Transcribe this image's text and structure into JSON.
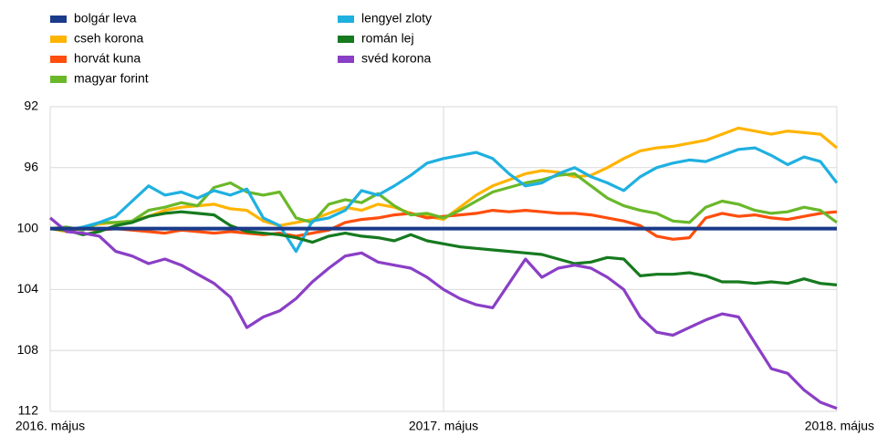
{
  "chart_data": {
    "type": "line",
    "categories": [
      "2016. május",
      null,
      null,
      null,
      null,
      null,
      null,
      null,
      null,
      null,
      null,
      null,
      null,
      null,
      null,
      null,
      null,
      null,
      null,
      null,
      null,
      null,
      null,
      null,
      "2017. május",
      null,
      null,
      null,
      null,
      null,
      null,
      null,
      null,
      null,
      null,
      null,
      null,
      null,
      null,
      null,
      null,
      null,
      null,
      null,
      null,
      null,
      null,
      null,
      "2018. május"
    ],
    "ylim": [
      92,
      112
    ],
    "yticks": [
      92,
      96,
      100,
      104,
      108,
      112
    ],
    "inverted": true,
    "grid": true,
    "series": [
      {
        "name": "bolgár leva",
        "color": "#1a3a8a",
        "values": [
          100,
          100,
          100,
          100,
          100,
          100,
          100,
          100,
          100,
          100,
          100,
          100,
          100,
          100,
          100,
          100,
          100,
          100,
          100,
          100,
          100,
          100,
          100,
          100,
          100,
          100,
          100,
          100,
          100,
          100,
          100,
          100,
          100,
          100,
          100,
          100,
          100,
          100,
          100,
          100,
          100,
          100,
          100,
          100,
          100,
          100,
          100,
          100,
          100
        ]
      },
      {
        "name": "cseh korona",
        "color": "#ffb400",
        "values": [
          100,
          100.2,
          99.9,
          99.7,
          99.6,
          99.5,
          99.2,
          98.8,
          98.6,
          98.5,
          98.4,
          98.7,
          98.8,
          99.5,
          99.8,
          99.6,
          99.4,
          99.0,
          98.6,
          98.8,
          98.4,
          98.6,
          99.0,
          99.2,
          99.4,
          98.6,
          97.8,
          97.2,
          96.8,
          96.4,
          96.2,
          96.3,
          96.6,
          96.5,
          96.0,
          95.4,
          94.9,
          94.7,
          94.6,
          94.4,
          94.2,
          93.8,
          93.4,
          93.6,
          93.8,
          93.6,
          93.7,
          93.8,
          94.7
        ]
      },
      {
        "name": "horvát kuna",
        "color": "#ff4e0d",
        "values": [
          100,
          100.1,
          100,
          100.1,
          100,
          100.1,
          100.2,
          100.3,
          100.1,
          100.2,
          100.3,
          100.2,
          100.3,
          100.4,
          100.3,
          100.5,
          100.3,
          100.1,
          99.6,
          99.4,
          99.3,
          99.1,
          99.0,
          99.3,
          99.2,
          99.1,
          99.0,
          98.8,
          98.9,
          98.8,
          98.9,
          99.0,
          99.0,
          99.1,
          99.3,
          99.5,
          99.8,
          100.5,
          100.7,
          100.6,
          99.3,
          99.0,
          99.2,
          99.1,
          99.3,
          99.4,
          99.2,
          99.0,
          98.9
        ]
      },
      {
        "name": "magyar forint",
        "color": "#6ab82a",
        "values": [
          100,
          99.9,
          100.1,
          99.6,
          99.6,
          99.5,
          98.8,
          98.6,
          98.3,
          98.5,
          97.3,
          97.0,
          97.6,
          97.8,
          97.6,
          99.3,
          99.6,
          98.4,
          98.1,
          98.3,
          97.7,
          98.5,
          99.1,
          99.0,
          99.3,
          98.8,
          98.2,
          97.6,
          97.3,
          97.0,
          96.8,
          96.5,
          96.4,
          97.2,
          98.0,
          98.5,
          98.8,
          99.0,
          99.5,
          99.6,
          98.6,
          98.2,
          98.4,
          98.8,
          99.0,
          98.9,
          98.6,
          98.8,
          99.6
        ]
      },
      {
        "name": "lengyel zloty",
        "color": "#1fb0e0",
        "values": [
          100,
          100.1,
          99.9,
          99.6,
          99.2,
          98.2,
          97.2,
          97.8,
          97.6,
          98,
          97.5,
          97.8,
          97.4,
          99.3,
          99.8,
          101.5,
          99.5,
          99.3,
          98.8,
          97.5,
          97.8,
          97.2,
          96.5,
          95.7,
          95.4,
          95.2,
          95,
          95.4,
          96.4,
          97.2,
          97,
          96.4,
          96,
          96.6,
          97,
          97.5,
          96.6,
          96,
          95.7,
          95.5,
          95.6,
          95.2,
          94.8,
          94.7,
          95.2,
          95.8,
          95.3,
          95.6,
          97
        ]
      },
      {
        "name": "román lej",
        "color": "#167a1f",
        "values": [
          100,
          100.1,
          100.4,
          100.2,
          99.8,
          99.6,
          99.2,
          99.0,
          98.9,
          99.0,
          99.1,
          99.8,
          100.2,
          100.3,
          100.4,
          100.6,
          100.9,
          100.5,
          100.3,
          100.5,
          100.6,
          100.8,
          100.4,
          100.8,
          101.0,
          101.2,
          101.3,
          101.4,
          101.5,
          101.6,
          101.7,
          102.0,
          102.3,
          102.2,
          101.9,
          102.0,
          103.1,
          103.0,
          103.0,
          102.9,
          103.1,
          103.5,
          103.5,
          103.6,
          103.5,
          103.6,
          103.3,
          103.6,
          103.7
        ]
      },
      {
        "name": "svéd korona",
        "color": "#8a3fc6",
        "values": [
          99.3,
          100.2,
          100.3,
          100.5,
          101.5,
          101.8,
          102.3,
          102,
          102.4,
          103,
          103.6,
          104.5,
          106.5,
          105.8,
          105.4,
          104.6,
          103.5,
          102.6,
          101.8,
          101.6,
          102.2,
          102.4,
          102.6,
          103.2,
          104,
          104.6,
          105,
          105.2,
          103.6,
          102,
          103.2,
          102.6,
          102.4,
          102.6,
          103.2,
          104,
          105.8,
          106.8,
          107,
          106.5,
          106,
          105.6,
          105.8,
          107.5,
          109.2,
          109.5,
          110.6,
          111.4,
          111.8
        ]
      }
    ]
  }
}
